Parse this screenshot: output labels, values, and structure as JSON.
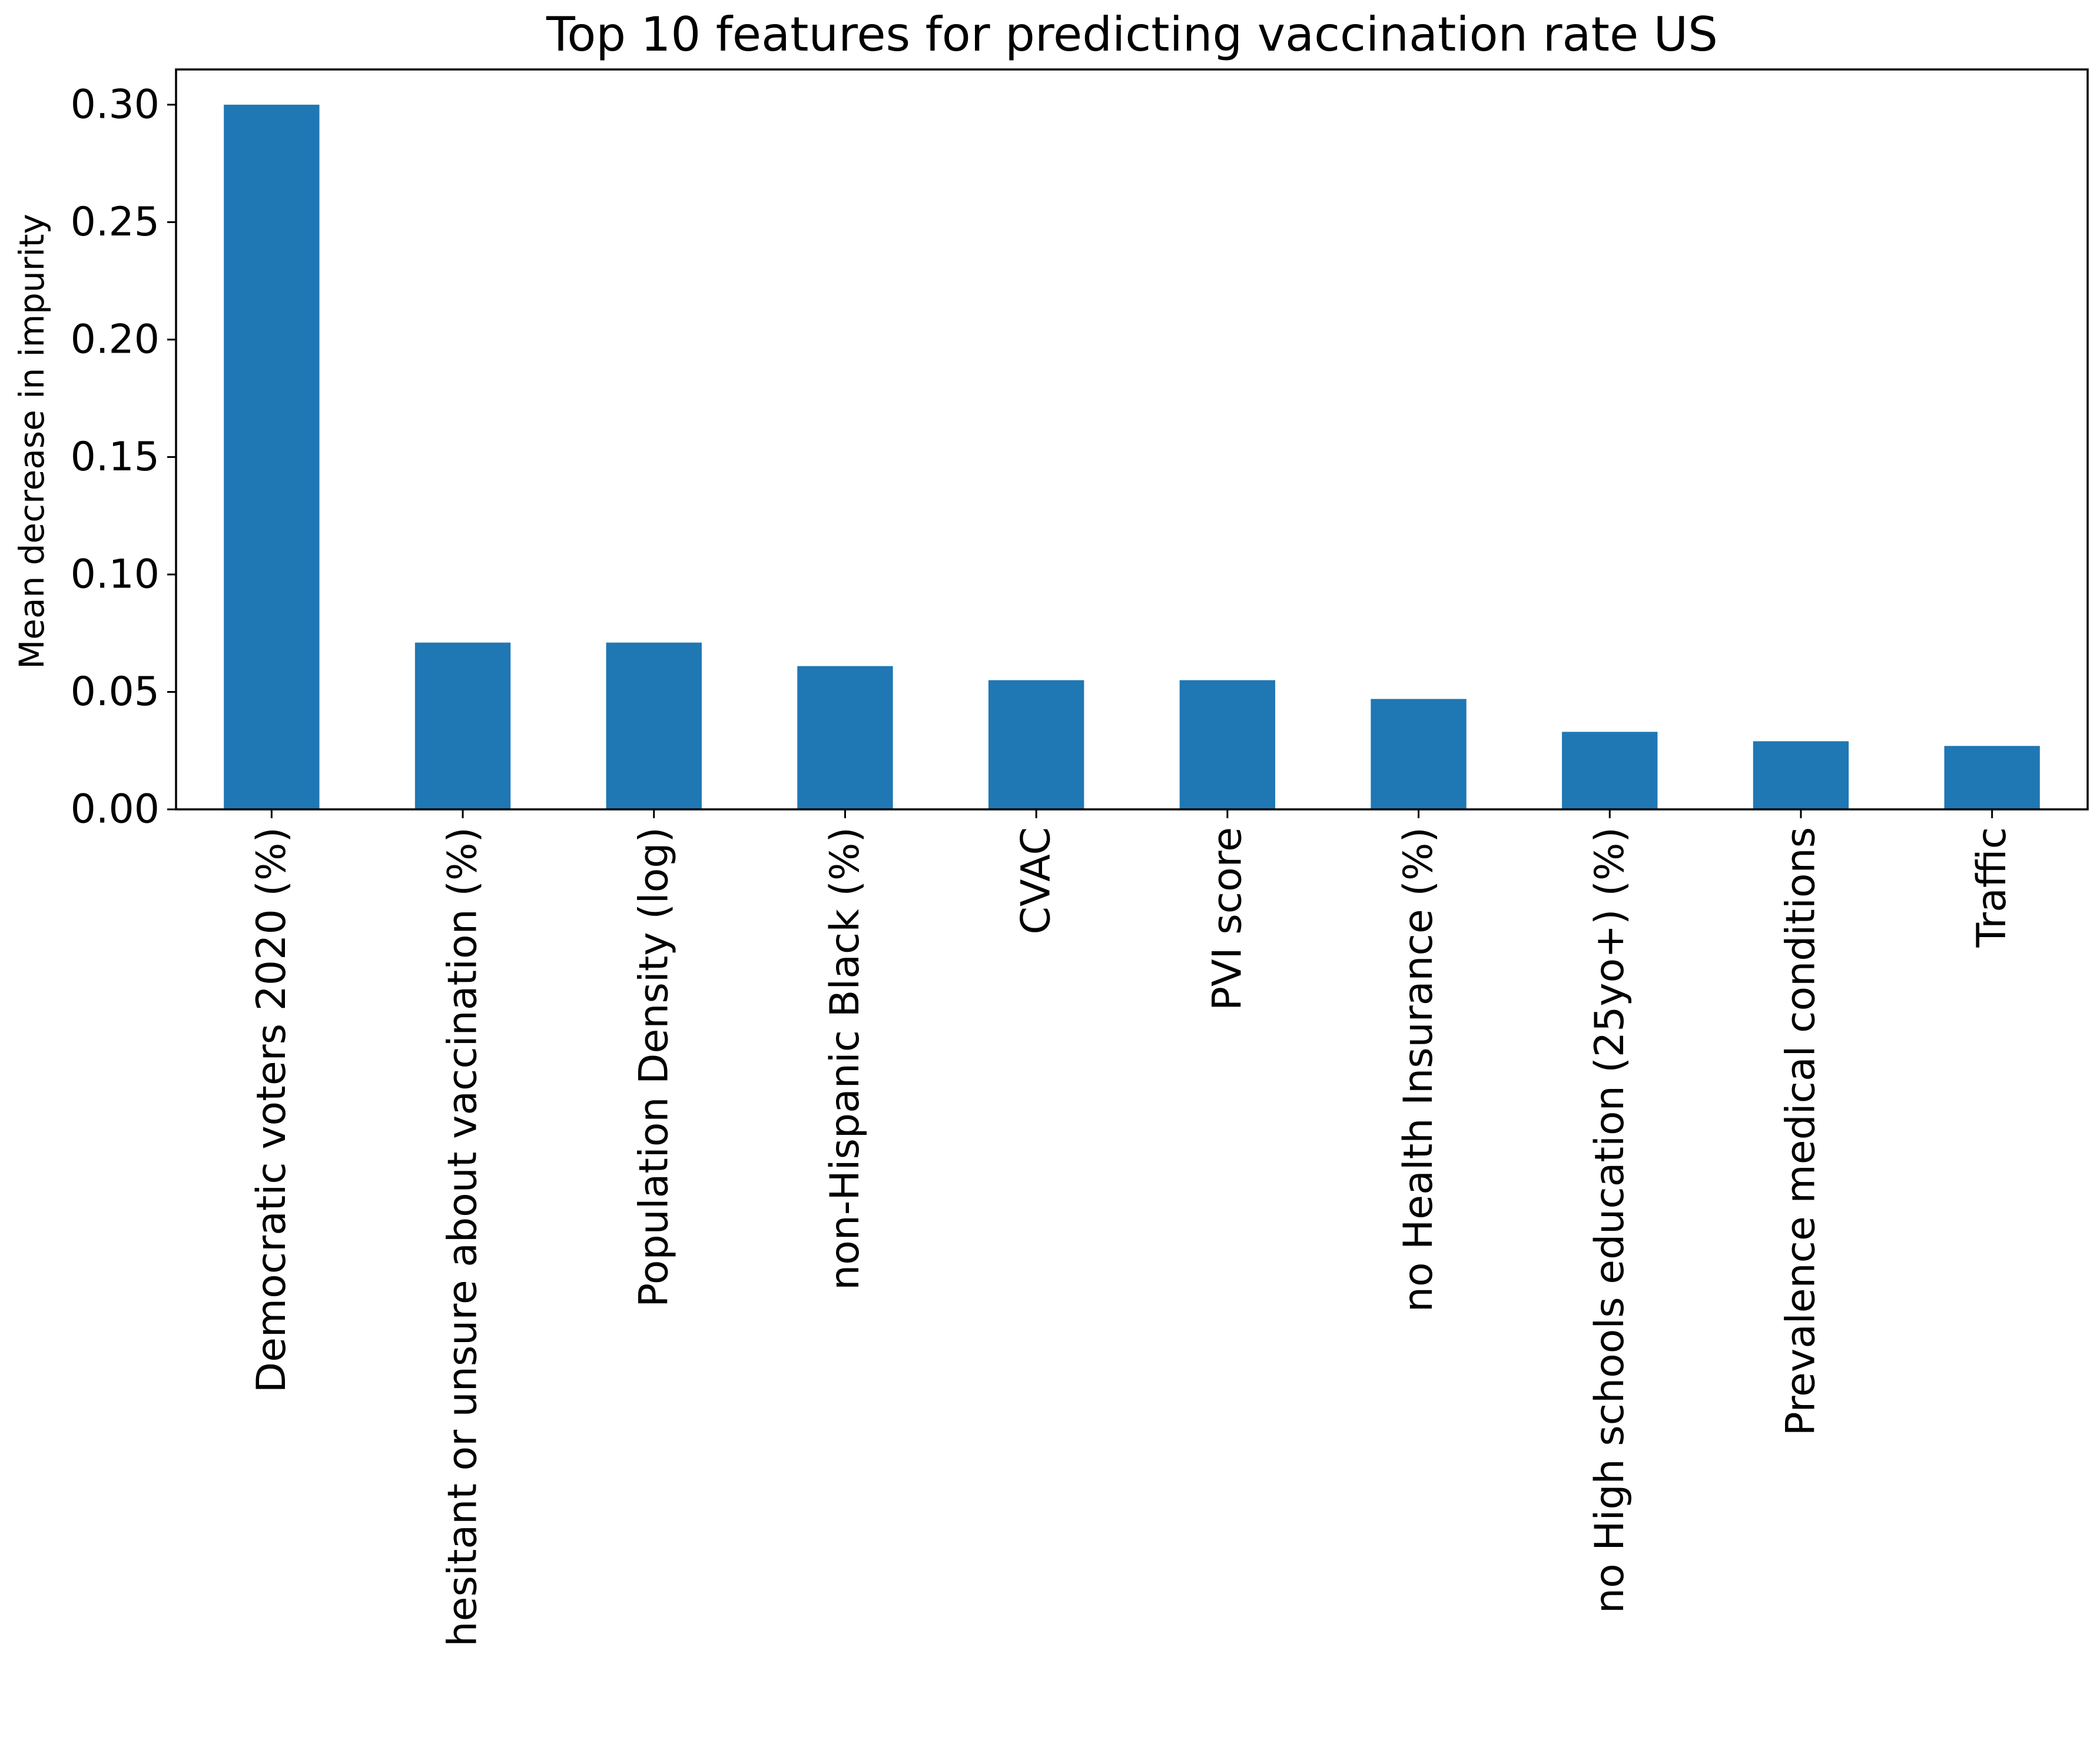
{
  "chart_data": {
    "type": "bar",
    "title": "Top 10 features for predicting vaccination rate US",
    "xlabel": "",
    "ylabel": "Mean decrease in impurity",
    "ylim": [
      0,
      0.315
    ],
    "yticks": [
      "0.00",
      "0.05",
      "0.10",
      "0.15",
      "0.20",
      "0.25",
      "0.30"
    ],
    "ytick_values": [
      0,
      0.05,
      0.1,
      0.15,
      0.2,
      0.25,
      0.3
    ],
    "categories": [
      "Democratic voters 2020 (%)",
      "hesitant or unsure about vaccination (%)",
      "Population Density (log)",
      "non-Hispanic Black (%)",
      "CVAC",
      "PVI score",
      "no Health Insurance (%)",
      "no High schools education (25yo+) (%)",
      "Prevalence medical conditions",
      "Traffic"
    ],
    "values": [
      0.3,
      0.071,
      0.071,
      0.061,
      0.055,
      0.055,
      0.047,
      0.033,
      0.029,
      0.027
    ],
    "bar_color": "#1f77b4",
    "grid": false,
    "legend": "none"
  }
}
